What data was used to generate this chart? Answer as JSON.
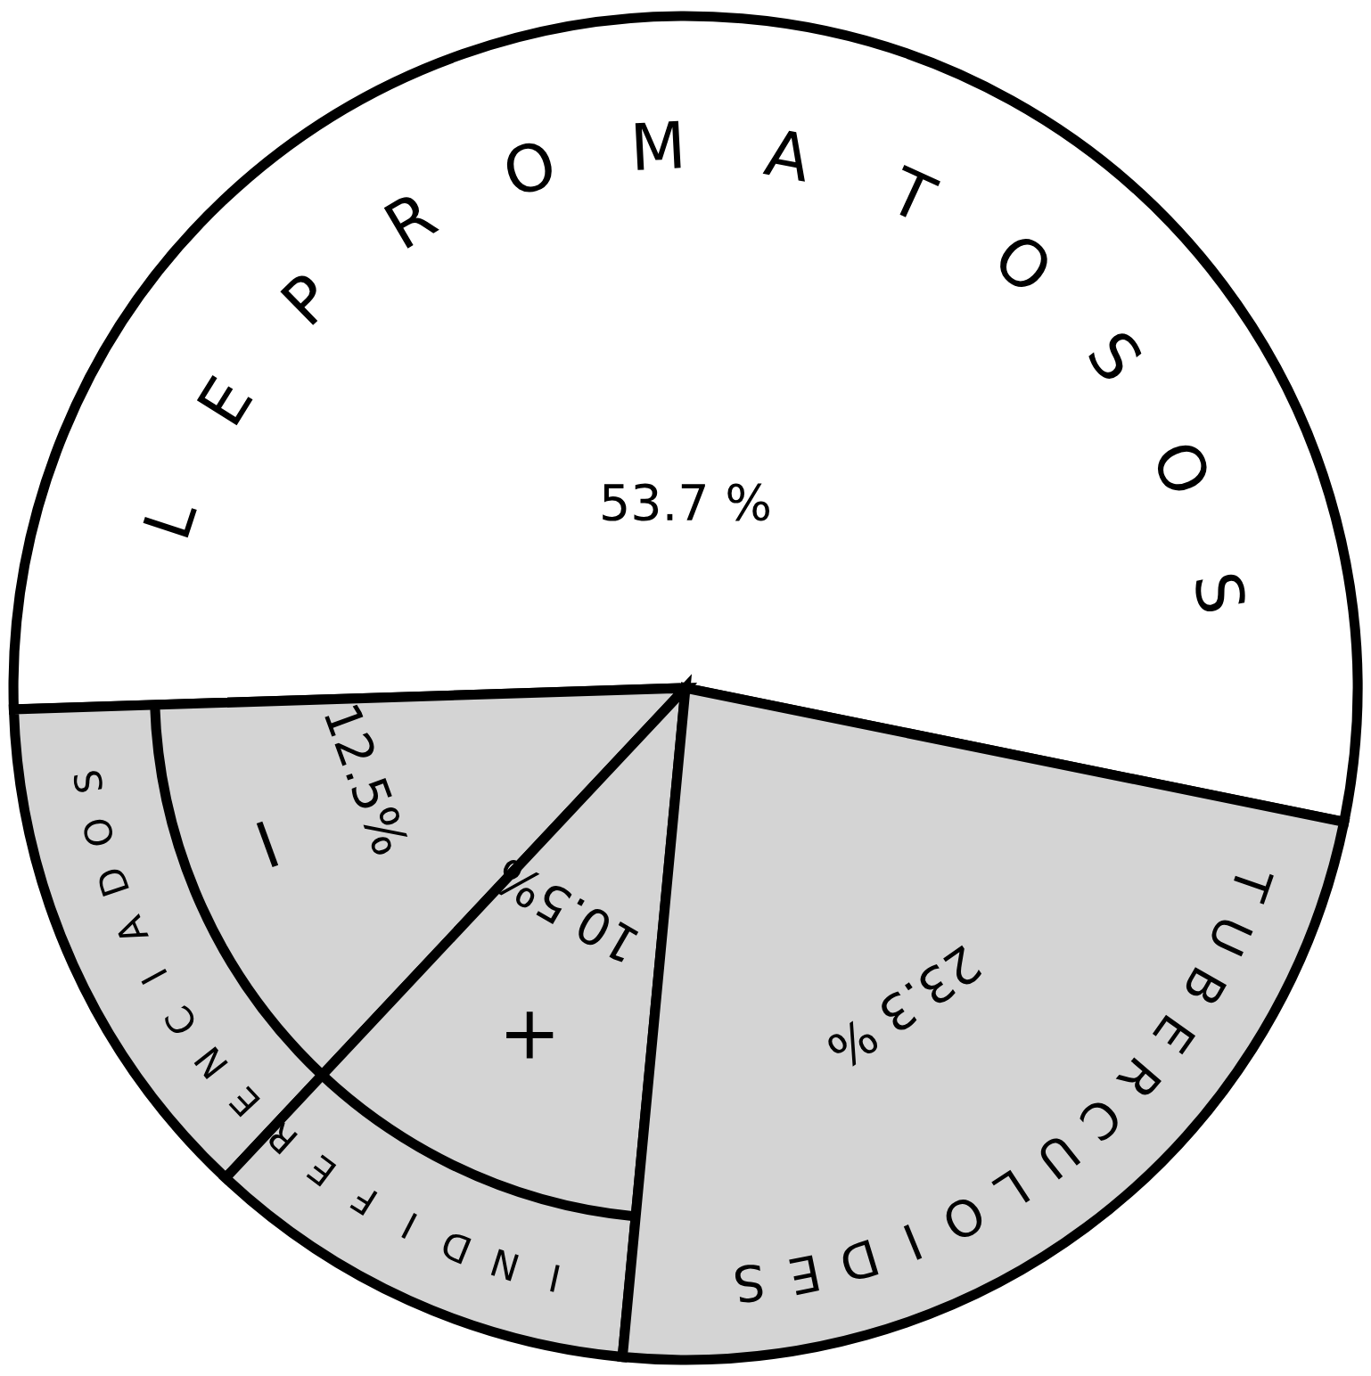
{
  "chart_data": {
    "type": "pie",
    "categories": [
      "LEPROMATOSOS",
      "−",
      "+",
      "TUBERCULOIDES"
    ],
    "values": [
      53.7,
      12.5,
      10.5,
      23.3
    ],
    "colors": [
      "#ffffff",
      "#d4d4d4",
      "#d4d4d4",
      "#d4d4d4"
    ],
    "value_labels": [
      "53.7 %",
      "12.5%",
      "10.5%",
      "23.3 %"
    ],
    "annotations": [
      "INDIFERENCIADOS"
    ]
  }
}
